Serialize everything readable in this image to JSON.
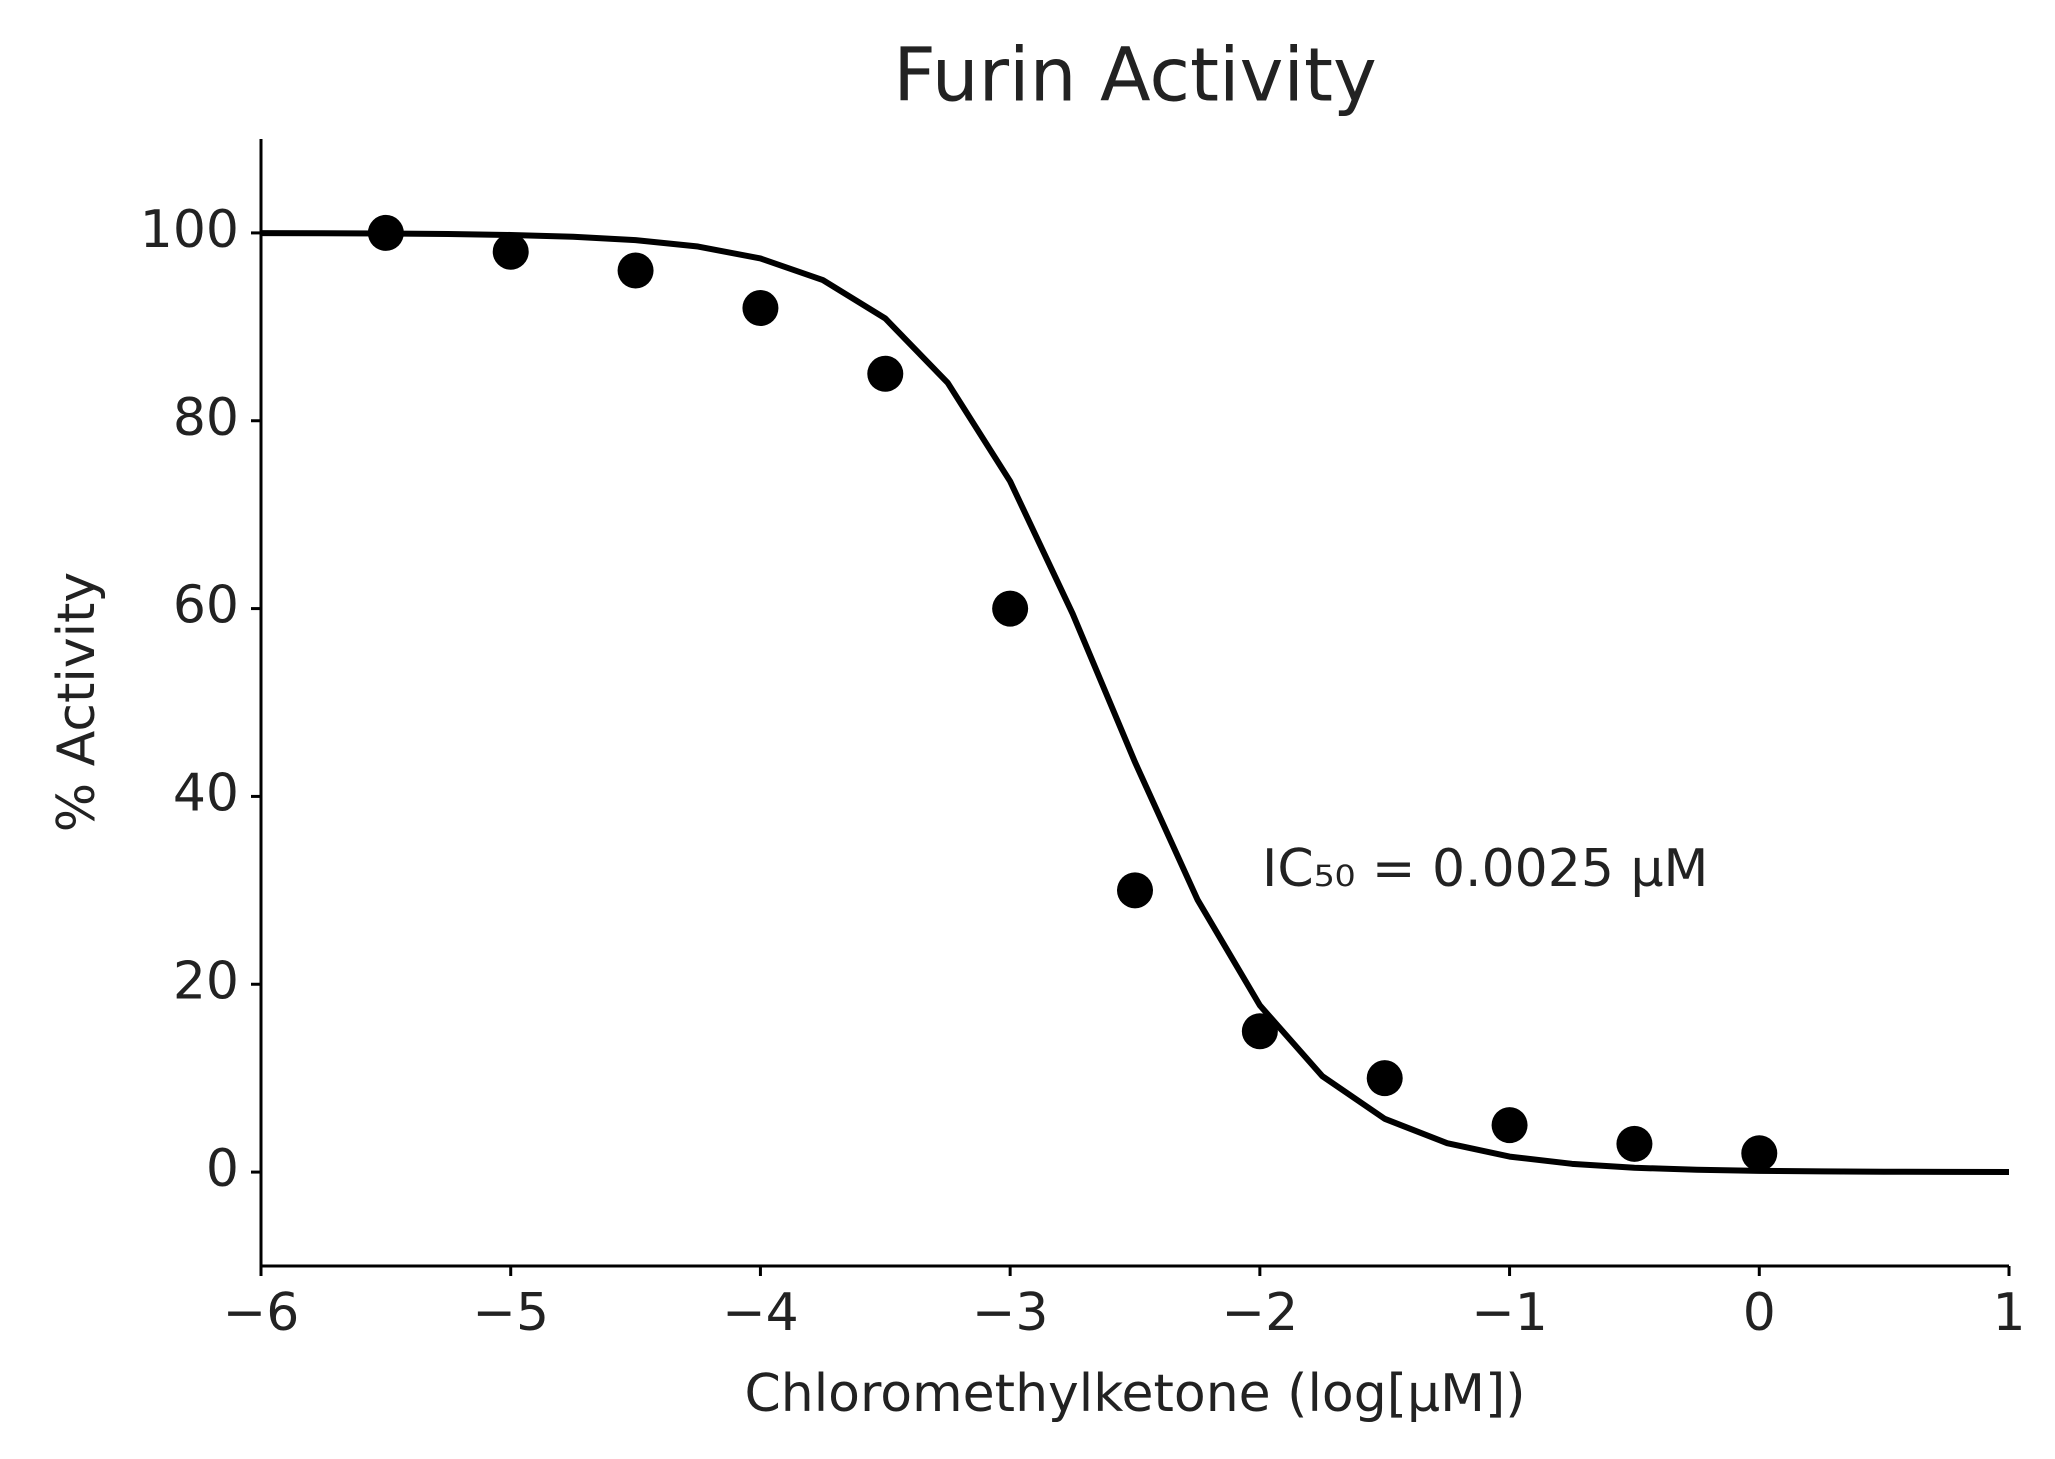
{
  "chart_data": {
    "type": "scatter",
    "title": "Furin Activity",
    "x_label": "Chloromethylketone (log[μM])",
    "y_label": "% Activity",
    "annotation": "IC₅₀ = 0.0025 μM",
    "xlim": [
      -6,
      1
    ],
    "ylim": [
      -10,
      110
    ],
    "xticks": [
      {
        "value": -6,
        "label": "−6"
      },
      {
        "value": -5,
        "label": "−5"
      },
      {
        "value": -4,
        "label": "−4"
      },
      {
        "value": -3,
        "label": "−3"
      },
      {
        "value": -2,
        "label": "−2"
      },
      {
        "value": -1,
        "label": "−1"
      },
      0,
      1
    ],
    "yticks": [
      0,
      20,
      40,
      60,
      80,
      100
    ],
    "grid": false,
    "series": [
      {
        "type": "scatter",
        "color": "#000000",
        "x": [
          -5.5,
          -5,
          -4.5,
          -4,
          -3.5,
          -3,
          -2.5,
          -2,
          -1.5,
          -1,
          -0.5,
          0
        ],
        "values": [
          100,
          98,
          96,
          92,
          85,
          60,
          30,
          15,
          10,
          5,
          3,
          2
        ]
      },
      {
        "type": "line",
        "color": "#000000",
        "x": [
          -6,
          -5.75,
          -5.5,
          -5.25,
          -5,
          -4.75,
          -4.5,
          -4.25,
          -4,
          -3.75,
          -3.5,
          -3.25,
          -3,
          -2.75,
          -2.5,
          -2.25,
          -2,
          -1.75,
          -1.5,
          -1.25,
          -1,
          -0.75,
          -0.5,
          -0.25,
          0,
          0.25,
          0.5,
          0.75,
          1
        ],
        "values": [
          99.98,
          99.97,
          99.94,
          99.89,
          99.78,
          99.59,
          99.23,
          98.55,
          97.28,
          94.98,
          90.89,
          84.04,
          73.55,
          59.47,
          43.65,
          29.02,
          17.75,
          10.22,
          5.67,
          3.08,
          1.65,
          0.88,
          0.46,
          0.25,
          0.13,
          0.07,
          0.04,
          0.02,
          0.01
        ]
      }
    ]
  }
}
